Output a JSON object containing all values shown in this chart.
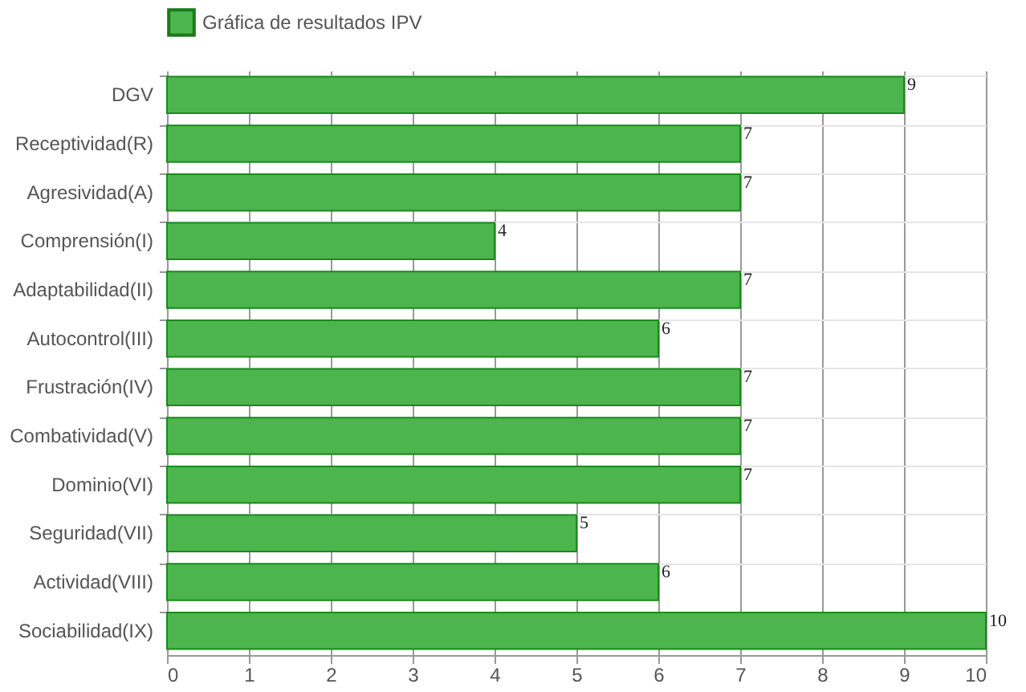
{
  "chart_data": {
    "type": "bar",
    "orientation": "horizontal",
    "categories": [
      "DGV",
      "Receptividad(R)",
      "Agresividad(A)",
      "Comprensión(I)",
      "Adaptabilidad(II)",
      "Autocontrol(III)",
      "Frustración(IV)",
      "Combatividad(V)",
      "Dominio(VI)",
      "Seguridad(VII)",
      "Actividad(VIII)",
      "Sociabilidad(IX)"
    ],
    "series": [
      {
        "name": "Gráfica de resultados IPV",
        "color": "#4db54d",
        "values": [
          9,
          7,
          7,
          4,
          7,
          6,
          7,
          7,
          7,
          5,
          6,
          10
        ]
      }
    ],
    "xlim": [
      0,
      10
    ],
    "xticks": [
      0,
      1,
      2,
      3,
      4,
      5,
      6,
      7,
      8,
      9,
      10
    ],
    "grid": true,
    "legend": "top",
    "data_labels": true
  }
}
